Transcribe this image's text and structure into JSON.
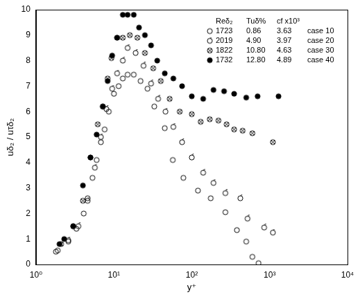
{
  "chart_data": {
    "type": "scatter",
    "x_label": "y⁺",
    "y_label": "uδ₂ / uτδ₂",
    "log": "x",
    "grid": false,
    "legend": "top right",
    "legend_header": [
      "Reδ₂",
      "Tuδ%",
      "cf x10³"
    ],
    "xlim": [
      1,
      10000
    ],
    "xticks": [
      {
        "value": 1,
        "label": "10⁰"
      },
      {
        "value": 10,
        "label": "10¹"
      },
      {
        "value": 100,
        "label": "10²"
      },
      {
        "value": 1000,
        "label": "10³"
      },
      {
        "value": 10000,
        "label": "10⁴"
      }
    ],
    "ylim": [
      0,
      10
    ],
    "yticks": [
      0,
      1,
      2,
      3,
      4,
      5,
      6,
      7,
      8,
      9,
      10
    ],
    "series": [
      {
        "name": "case 10",
        "re_delta2": 1723,
        "tu_delta_percent": 0.86,
        "cf_x1000": 3.63,
        "marker": "circle_open",
        "color": "#000000",
        "x": [
          1.8,
          1.9,
          2.6,
          3.3,
          4.1,
          4.6,
          5.3,
          6,
          6.8,
          7.6,
          8.6,
          10,
          11.5,
          13,
          15,
          18,
          22,
          27,
          33,
          45,
          57,
          78,
          120,
          175,
          270,
          380,
          500,
          600,
          720
        ],
        "values": [
          0.5,
          0.55,
          0.9,
          1.4,
          2.0,
          2.6,
          3.4,
          4.1,
          4.8,
          5.3,
          6.0,
          6.7,
          7.0,
          7.3,
          7.45,
          7.45,
          7.2,
          6.9,
          6.2,
          5.35,
          4.1,
          3.4,
          2.9,
          2.6,
          2.05,
          1.35,
          0.9,
          0.3,
          0.05
        ]
      },
      {
        "name": "case 20",
        "re_delta2": 2019,
        "tu_delta_percent": 4.9,
        "cf_x1000": 3.97,
        "marker": "circle_tick",
        "color": "#000000",
        "x": [
          2.6,
          3.5,
          4.6,
          5.7,
          6.8,
          8,
          9.5,
          11,
          13,
          15,
          19,
          24,
          30,
          37,
          46,
          58,
          75,
          100,
          140,
          190,
          270,
          420,
          520,
          850,
          1100
        ],
        "values": [
          0.95,
          1.5,
          2.5,
          3.8,
          5.0,
          6.1,
          6.9,
          7.5,
          8.0,
          8.5,
          8.3,
          7.8,
          7.1,
          6.5,
          6.0,
          5.4,
          4.8,
          4.2,
          3.6,
          3.2,
          2.8,
          2.6,
          1.8,
          1.45,
          1.25
        ]
      },
      {
        "name": "case 30",
        "re_delta2": 1822,
        "tu_delta_percent": 10.8,
        "cf_x1000": 4.63,
        "marker": "circle_cross",
        "color": "#000000",
        "x": [
          2.1,
          3.0,
          4.0,
          5.0,
          6.2,
          7.2,
          8.3,
          9.3,
          11,
          13,
          16,
          20,
          25,
          32,
          40,
          52,
          70,
          100,
          130,
          170,
          220,
          280,
          350,
          450,
          600,
          1100
        ],
        "values": [
          0.8,
          1.5,
          2.5,
          4.2,
          5.5,
          6.2,
          7.3,
          8.1,
          8.9,
          8.9,
          9.0,
          8.9,
          8.3,
          7.7,
          7.2,
          6.5,
          6.0,
          5.9,
          5.6,
          5.7,
          5.65,
          5.5,
          5.3,
          5.25,
          5.15,
          4.8
        ]
      },
      {
        "name": "case 40",
        "re_delta2": 1732,
        "tu_delta_percent": 12.8,
        "cf_x1000": 4.89,
        "marker": "circle_filled",
        "color": "#000000",
        "x": [
          2.0,
          2.3,
          3.0,
          4.0,
          5.0,
          6.0,
          7.2,
          8.3,
          9.5,
          11,
          13,
          15,
          18,
          21,
          25,
          30,
          36,
          45,
          58,
          75,
          100,
          140,
          190,
          260,
          350,
          500,
          700,
          1300
        ],
        "values": [
          0.8,
          1.0,
          1.5,
          3.1,
          4.2,
          5.1,
          6.2,
          7.2,
          8.2,
          8.9,
          9.8,
          9.8,
          9.8,
          9.3,
          9.0,
          8.6,
          8.0,
          7.5,
          7.3,
          7.0,
          6.6,
          6.5,
          6.85,
          6.8,
          6.7,
          6.55,
          6.6,
          6.6
        ]
      }
    ]
  }
}
